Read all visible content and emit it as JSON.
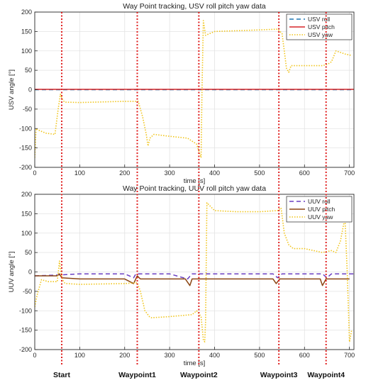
{
  "chart_data": [
    {
      "type": "line",
      "title": "Way Point tracking, USV roll pitch yaw data",
      "xlabel": "time [s]",
      "ylabel": "USV angle [°]",
      "xlim": [
        0,
        710
      ],
      "ylim": [
        -200,
        200
      ],
      "xticks": [
        0,
        100,
        200,
        300,
        400,
        500,
        600,
        700
      ],
      "yticks": [
        -200,
        -150,
        -100,
        -50,
        0,
        50,
        100,
        150,
        200
      ],
      "grid": true,
      "legend_position": "top-right",
      "series": [
        {
          "name": "USV roll",
          "style": "dashed",
          "color": "#1f77b4",
          "x": [
            0,
            100,
            200,
            300,
            400,
            500,
            600,
            710
          ],
          "y": [
            0,
            0,
            0,
            0,
            0,
            0,
            0,
            0
          ]
        },
        {
          "name": "USV pitch",
          "style": "solid",
          "color": "#d62728",
          "x": [
            0,
            100,
            200,
            300,
            400,
            500,
            600,
            710
          ],
          "y": [
            1,
            1,
            1,
            1,
            1,
            1,
            1,
            1
          ]
        },
        {
          "name": "USV yaw",
          "style": "dotted",
          "color": "#f0c419",
          "x": [
            0,
            3,
            10,
            25,
            45,
            52,
            57,
            62,
            66,
            100,
            200,
            230,
            240,
            248,
            252,
            256,
            265,
            300,
            340,
            360,
            367,
            370,
            372,
            375,
            380,
            400,
            450,
            500,
            540,
            550,
            555,
            560,
            565,
            570,
            600,
            640,
            650,
            655,
            660,
            670,
            690,
            705
          ],
          "y": [
            -175,
            -100,
            -105,
            -112,
            -115,
            -50,
            -12,
            -25,
            -32,
            -33,
            -30,
            -30,
            -70,
            -115,
            -145,
            -125,
            -115,
            -120,
            -125,
            -140,
            -165,
            -175,
            0,
            178,
            140,
            150,
            152,
            154,
            156,
            145,
            100,
            55,
            45,
            62,
            62,
            62,
            65,
            68,
            72,
            100,
            92,
            88
          ]
        }
      ],
      "annotations": {
        "waypoint_lines_x": [
          60,
          228,
          365,
          543,
          648
        ]
      }
    },
    {
      "type": "line",
      "title": "Way Point tracking, UUV roll pitch yaw data",
      "xlabel": "time [s]",
      "ylabel": "UUV angle [°]",
      "xlim": [
        0,
        710
      ],
      "ylim": [
        -200,
        200
      ],
      "xticks": [
        0,
        100,
        200,
        300,
        400,
        500,
        600,
        700
      ],
      "yticks": [
        -200,
        -150,
        -100,
        -50,
        0,
        50,
        100,
        150,
        200
      ],
      "grid": true,
      "legend_position": "top-right",
      "series": [
        {
          "name": "UUV roll",
          "style": "dashed",
          "color": "#6a3fc1",
          "x": [
            0,
            50,
            100,
            200,
            220,
            225,
            235,
            300,
            340,
            350,
            360,
            380,
            450,
            530,
            540,
            550,
            600,
            640,
            650,
            660,
            710
          ],
          "y": [
            -10,
            -8,
            -5,
            -5,
            -15,
            -5,
            -5,
            -5,
            -18,
            -5,
            -5,
            -5,
            -5,
            -5,
            -15,
            -5,
            -5,
            -5,
            -15,
            -5,
            -5
          ]
        },
        {
          "name": "UUV pitch",
          "style": "solid",
          "color": "#8b4513",
          "x": [
            0,
            50,
            55,
            60,
            100,
            200,
            220,
            228,
            235,
            300,
            335,
            345,
            350,
            360,
            380,
            450,
            530,
            537,
            545,
            600,
            635,
            640,
            648,
            700
          ],
          "y": [
            -10,
            -10,
            -5,
            -15,
            -18,
            -18,
            -30,
            -10,
            -18,
            -18,
            -18,
            -35,
            -18,
            -18,
            -18,
            -18,
            -18,
            -30,
            -18,
            -18,
            -18,
            -35,
            -18,
            -18
          ]
        },
        {
          "name": "UUV yaw",
          "style": "dotted",
          "color": "#f0c419",
          "x": [
            0,
            5,
            15,
            30,
            50,
            55,
            58,
            62,
            66,
            70,
            100,
            200,
            228,
            235,
            245,
            255,
            260,
            300,
            350,
            360,
            370,
            375,
            378,
            380,
            383,
            400,
            450,
            500,
            540,
            548,
            555,
            565,
            575,
            600,
            640,
            660,
            670,
            680,
            690,
            695,
            700,
            705
          ],
          "y": [
            -90,
            -60,
            -20,
            -25,
            -25,
            28,
            0,
            -20,
            -28,
            -30,
            -32,
            -30,
            -28,
            -50,
            -100,
            -115,
            -118,
            -115,
            -110,
            -100,
            -115,
            -175,
            -180,
            -130,
            178,
            158,
            155,
            155,
            158,
            165,
            100,
            70,
            60,
            60,
            50,
            55,
            50,
            80,
            140,
            0,
            -180,
            -150
          ]
        }
      ],
      "annotations": {
        "waypoint_lines_x": [
          60,
          228,
          365,
          543,
          648
        ]
      }
    }
  ],
  "waypoint_labels": [
    "Start",
    "Waypoint1",
    "Waypoint2",
    "Waypoint3",
    "Waypoint4"
  ]
}
